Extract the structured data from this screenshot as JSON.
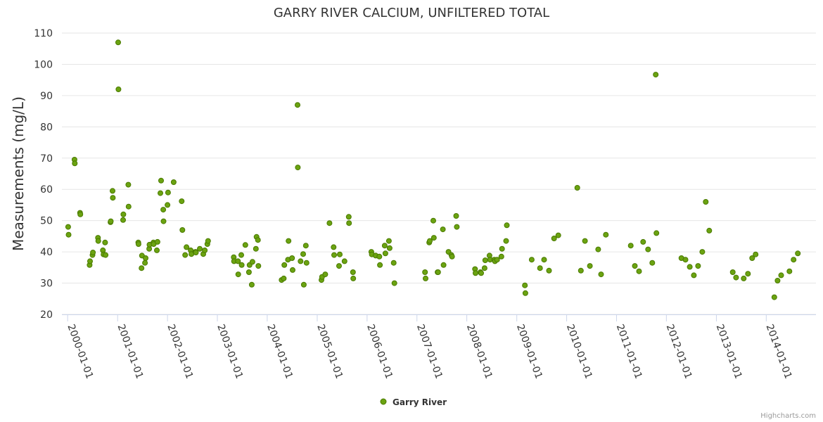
{
  "credits": "Highcharts.com",
  "chart_data": {
    "type": "scatter",
    "title": "GARRY RIVER CALCIUM, UNFILTERED TOTAL",
    "ylabel": "Measurements (mg/L)",
    "xlabel": "",
    "ylim": [
      20,
      110
    ],
    "yticks": [
      20,
      30,
      40,
      50,
      60,
      70,
      80,
      90,
      100,
      110
    ],
    "xlim": [
      "1999-11-20",
      "2014-12-31"
    ],
    "xticks": [
      "2000-01-01",
      "2001-01-01",
      "2002-01-01",
      "2003-01-01",
      "2004-01-01",
      "2005-01-01",
      "2006-01-01",
      "2007-01-01",
      "2008-01-01",
      "2009-01-01",
      "2010-01-01",
      "2011-01-01",
      "2012-01-01",
      "2013-01-01",
      "2014-01-01"
    ],
    "grid": true,
    "legend": "bottom-center",
    "series": [
      {
        "name": "Garry River",
        "color": "#6ba311",
        "points": [
          [
            "2000-01-05",
            48
          ],
          [
            "2000-01-08",
            45.5
          ],
          [
            "2000-02-20",
            69.5
          ],
          [
            "2000-02-22",
            68.3
          ],
          [
            "2000-04-01",
            52.5
          ],
          [
            "2000-04-03",
            52
          ],
          [
            "2000-06-10",
            35.8
          ],
          [
            "2000-06-13",
            37
          ],
          [
            "2000-07-01",
            39
          ],
          [
            "2000-07-04",
            39.8
          ],
          [
            "2000-08-10",
            44.5
          ],
          [
            "2000-08-12",
            43.5
          ],
          [
            "2000-09-15",
            40.5
          ],
          [
            "2000-09-20",
            39.2
          ],
          [
            "2000-10-01",
            43
          ],
          [
            "2000-10-05",
            39
          ],
          [
            "2000-11-10",
            49.5
          ],
          [
            "2000-11-12",
            49.8
          ],
          [
            "2000-11-25",
            59.5
          ],
          [
            "2000-11-27",
            57.3
          ],
          [
            "2001-01-05",
            107
          ],
          [
            "2001-01-07",
            92
          ],
          [
            "2001-02-10",
            50.2
          ],
          [
            "2001-02-12",
            52
          ],
          [
            "2001-03-20",
            61.5
          ],
          [
            "2001-03-22",
            54.5
          ],
          [
            "2001-06-01",
            43
          ],
          [
            "2001-06-03",
            42.5
          ],
          [
            "2001-06-25",
            34.8
          ],
          [
            "2001-06-28",
            38.8
          ],
          [
            "2001-07-20",
            36.5
          ],
          [
            "2001-07-25",
            38
          ],
          [
            "2001-08-20",
            41
          ],
          [
            "2001-08-22",
            42.3
          ],
          [
            "2001-09-20",
            43
          ],
          [
            "2001-09-22",
            42.5
          ],
          [
            "2001-10-15",
            40.5
          ],
          [
            "2001-10-20",
            43.2
          ],
          [
            "2001-11-10",
            58.8
          ],
          [
            "2001-11-15",
            62.8
          ],
          [
            "2001-12-01",
            53.5
          ],
          [
            "2001-12-03",
            49.8
          ],
          [
            "2002-01-01",
            55
          ],
          [
            "2002-01-05",
            59
          ],
          [
            "2002-02-15",
            62.3
          ],
          [
            "2002-04-15",
            56.2
          ],
          [
            "2002-04-20",
            47
          ],
          [
            "2002-05-10",
            39
          ],
          [
            "2002-05-20",
            41.5
          ],
          [
            "2002-06-20",
            40.5
          ],
          [
            "2002-06-25",
            39.3
          ],
          [
            "2002-07-25",
            40
          ],
          [
            "2002-07-28",
            39.8
          ],
          [
            "2002-08-25",
            41
          ],
          [
            "2002-09-20",
            39.3
          ],
          [
            "2002-10-01",
            40.5
          ],
          [
            "2002-10-20",
            42.5
          ],
          [
            "2002-10-25",
            43.5
          ],
          [
            "2003-05-01",
            38.3
          ],
          [
            "2003-05-03",
            37
          ],
          [
            "2003-06-01",
            37
          ],
          [
            "2003-06-03",
            32.8
          ],
          [
            "2003-06-25",
            39
          ],
          [
            "2003-06-28",
            35.8
          ],
          [
            "2003-07-25",
            42.2
          ],
          [
            "2003-08-20",
            33.5
          ],
          [
            "2003-08-25",
            35.8
          ],
          [
            "2003-09-10",
            29.5
          ],
          [
            "2003-09-15",
            36.8
          ],
          [
            "2003-10-10",
            41
          ],
          [
            "2003-10-15",
            44.8
          ],
          [
            "2003-10-25",
            43.8
          ],
          [
            "2003-10-28",
            35.5
          ],
          [
            "2004-04-15",
            31
          ],
          [
            "2004-05-01",
            31.5
          ],
          [
            "2004-05-05",
            35.8
          ],
          [
            "2004-06-01",
            37.5
          ],
          [
            "2004-06-05",
            43.5
          ],
          [
            "2004-07-01",
            38
          ],
          [
            "2004-07-05",
            34.2
          ],
          [
            "2004-08-10",
            87
          ],
          [
            "2004-08-12",
            67
          ],
          [
            "2004-09-01",
            37
          ],
          [
            "2004-09-20",
            39.3
          ],
          [
            "2004-09-25",
            29.5
          ],
          [
            "2004-10-10",
            42
          ],
          [
            "2004-10-15",
            36.5
          ],
          [
            "2005-02-01",
            31
          ],
          [
            "2005-02-05",
            32
          ],
          [
            "2005-03-01",
            32.8
          ],
          [
            "2005-04-01",
            49.2
          ],
          [
            "2005-05-01",
            41.5
          ],
          [
            "2005-05-05",
            39
          ],
          [
            "2005-06-10",
            35.5
          ],
          [
            "2005-06-15",
            39.2
          ],
          [
            "2005-07-20",
            37
          ],
          [
            "2005-08-20",
            51.2
          ],
          [
            "2005-08-22",
            49.2
          ],
          [
            "2005-09-20",
            33.5
          ],
          [
            "2005-09-22",
            31.5
          ],
          [
            "2006-02-01",
            40
          ],
          [
            "2006-02-05",
            39.2
          ],
          [
            "2006-03-05",
            38.8
          ],
          [
            "2006-04-01",
            38.5
          ],
          [
            "2006-04-05",
            35.8
          ],
          [
            "2006-05-10",
            42
          ],
          [
            "2006-05-15",
            39.5
          ],
          [
            "2006-06-10",
            43.5
          ],
          [
            "2006-06-15",
            41.2
          ],
          [
            "2006-07-15",
            36.5
          ],
          [
            "2006-07-20",
            30
          ],
          [
            "2007-03-01",
            33.5
          ],
          [
            "2007-03-05",
            31.5
          ],
          [
            "2007-04-01",
            43
          ],
          [
            "2007-04-05",
            43.5
          ],
          [
            "2007-05-01",
            50
          ],
          [
            "2007-05-05",
            44.5
          ],
          [
            "2007-06-01",
            33.5
          ],
          [
            "2007-06-05",
            33.5
          ],
          [
            "2007-07-10",
            47.2
          ],
          [
            "2007-07-15",
            35.8
          ],
          [
            "2007-08-20",
            40
          ],
          [
            "2007-09-10",
            39
          ],
          [
            "2007-09-15",
            38.5
          ],
          [
            "2007-10-15",
            51.5
          ],
          [
            "2007-10-20",
            48
          ],
          [
            "2008-03-01",
            34.5
          ],
          [
            "2008-03-05",
            33.2
          ],
          [
            "2008-04-10",
            33.5
          ],
          [
            "2008-04-15",
            33.2
          ],
          [
            "2008-05-10",
            34.8
          ],
          [
            "2008-05-15",
            37.3
          ],
          [
            "2008-06-15",
            38.8
          ],
          [
            "2008-06-20",
            37.5
          ],
          [
            "2008-07-20",
            37.5
          ],
          [
            "2008-07-25",
            37
          ],
          [
            "2008-08-10",
            37.5
          ],
          [
            "2008-09-10",
            38.5
          ],
          [
            "2008-09-15",
            41
          ],
          [
            "2008-10-15",
            43.5
          ],
          [
            "2008-10-20",
            48.5
          ],
          [
            "2009-03-01",
            29.3
          ],
          [
            "2009-03-05",
            26.8
          ],
          [
            "2009-04-20",
            37.5
          ],
          [
            "2009-06-20",
            34.8
          ],
          [
            "2009-07-20",
            37.5
          ],
          [
            "2009-08-25",
            34
          ],
          [
            "2009-10-01",
            44.3
          ],
          [
            "2009-11-01",
            45.3
          ],
          [
            "2010-03-20",
            60.5
          ],
          [
            "2010-04-15",
            34
          ],
          [
            "2010-05-15",
            43.5
          ],
          [
            "2010-06-20",
            35.5
          ],
          [
            "2010-08-20",
            40.8
          ],
          [
            "2010-09-10",
            32.8
          ],
          [
            "2010-10-15",
            45.5
          ],
          [
            "2011-04-15",
            42
          ],
          [
            "2011-05-15",
            35.5
          ],
          [
            "2011-06-15",
            33.8
          ],
          [
            "2011-07-15",
            43.2
          ],
          [
            "2011-08-20",
            40.8
          ],
          [
            "2011-09-20",
            36.5
          ],
          [
            "2011-10-15",
            96.7
          ],
          [
            "2011-10-20",
            46
          ],
          [
            "2012-04-20",
            38
          ],
          [
            "2012-05-20",
            37.5
          ],
          [
            "2012-06-20",
            35.2
          ],
          [
            "2012-07-20",
            32.5
          ],
          [
            "2012-08-20",
            35.5
          ],
          [
            "2012-09-20",
            40
          ],
          [
            "2012-10-15",
            56
          ],
          [
            "2012-11-10",
            46.8
          ],
          [
            "2013-05-01",
            33.5
          ],
          [
            "2013-05-25",
            31.8
          ],
          [
            "2013-07-20",
            31.5
          ],
          [
            "2013-08-20",
            33
          ],
          [
            "2013-09-20",
            38
          ],
          [
            "2013-10-15",
            39.2
          ],
          [
            "2014-03-01",
            25.5
          ],
          [
            "2014-03-25",
            30.8
          ],
          [
            "2014-04-20",
            32.5
          ],
          [
            "2014-06-20",
            33.8
          ],
          [
            "2014-07-20",
            37.5
          ],
          [
            "2014-08-20",
            39.5
          ]
        ]
      }
    ]
  }
}
